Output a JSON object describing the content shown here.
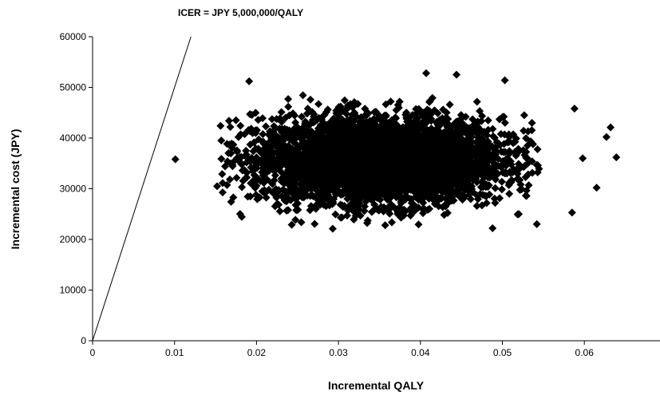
{
  "chart_data": {
    "type": "scatter",
    "annotation": "ICER = JPY 5,000,000/QALY",
    "xlabel": "Incremental QALY",
    "ylabel": "Incremental cost (JPY)",
    "xlim": [
      0,
      0.064
    ],
    "ylim": [
      0,
      60000
    ],
    "x_ticks": [
      "0",
      "0.01",
      "0.02",
      "0.03",
      "0.04",
      "0.05",
      "0.06"
    ],
    "x_tick_values": [
      0,
      0.01,
      0.02,
      0.03,
      0.04,
      0.05,
      0.06
    ],
    "y_ticks": [
      "0",
      "10000",
      "20000",
      "30000",
      "40000",
      "50000",
      "60000"
    ],
    "y_tick_values": [
      0,
      10000,
      20000,
      30000,
      40000,
      50000,
      60000
    ],
    "grid": false,
    "marker_color": "#000000",
    "threshold_line": {
      "slope_jpy_per_qaly": 5000000,
      "from": [
        0,
        0
      ],
      "to": [
        0.012,
        60000
      ]
    },
    "cloud": {
      "x_mean": 0.035,
      "x_sd": 0.0075,
      "y_mean": 35700,
      "y_sd": 4200,
      "n_points": 4500
    },
    "outliers": [
      {
        "x": 0.0101,
        "y": 35800
      },
      {
        "x": 0.0191,
        "y": 51200
      },
      {
        "x": 0.0407,
        "y": 52800
      },
      {
        "x": 0.0444,
        "y": 52500
      },
      {
        "x": 0.0503,
        "y": 51400
      },
      {
        "x": 0.0488,
        "y": 22200
      },
      {
        "x": 0.0293,
        "y": 22100
      },
      {
        "x": 0.0243,
        "y": 22900
      },
      {
        "x": 0.0639,
        "y": 36200
      },
      {
        "x": 0.0632,
        "y": 42100
      },
      {
        "x": 0.0588,
        "y": 45800
      },
      {
        "x": 0.0585,
        "y": 25300
      },
      {
        "x": 0.0152,
        "y": 30500
      },
      {
        "x": 0.0157,
        "y": 39500
      },
      {
        "x": 0.0615,
        "y": 30200
      },
      {
        "x": 0.0627,
        "y": 40200
      },
      {
        "x": 0.0598,
        "y": 36000
      },
      {
        "x": 0.0175,
        "y": 43500
      }
    ]
  }
}
